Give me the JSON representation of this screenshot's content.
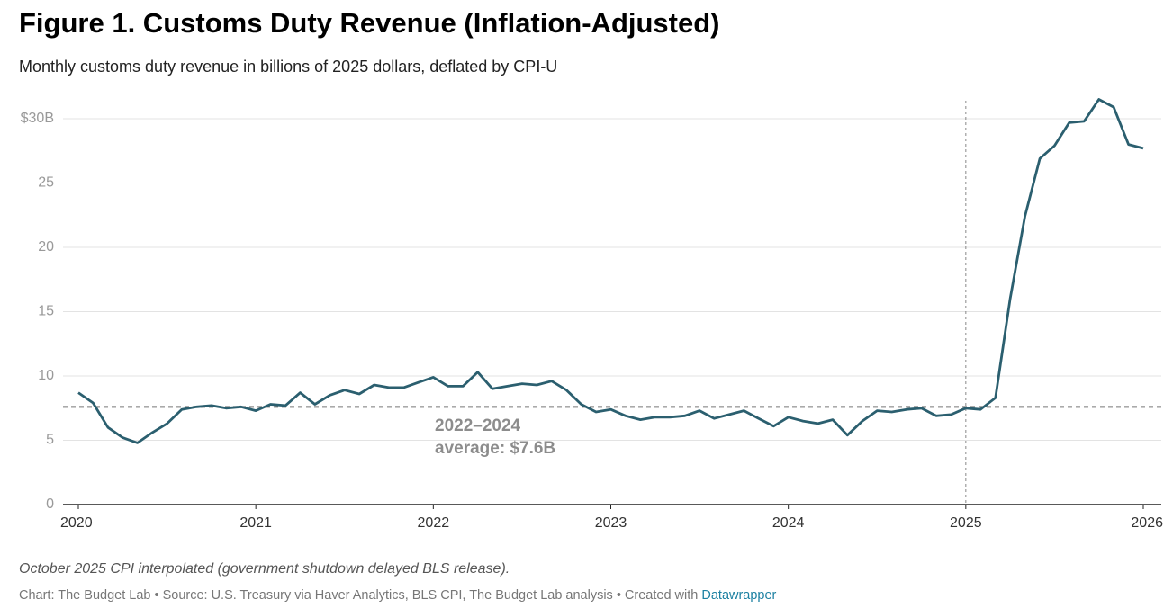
{
  "chart_data": {
    "type": "line",
    "title": "Figure 1. Customs Duty Revenue (Inflation-Adjusted)",
    "subtitle": "Monthly customs duty revenue in billions of 2025 dollars, deflated by CPI-U",
    "x": [
      2020,
      2020.083,
      2020.167,
      2020.25,
      2020.333,
      2020.417,
      2020.5,
      2020.583,
      2020.667,
      2020.75,
      2020.833,
      2020.917,
      2021,
      2021.083,
      2021.167,
      2021.25,
      2021.333,
      2021.417,
      2021.5,
      2021.583,
      2021.667,
      2021.75,
      2021.833,
      2021.917,
      2022,
      2022.083,
      2022.167,
      2022.25,
      2022.333,
      2022.417,
      2022.5,
      2022.583,
      2022.667,
      2022.75,
      2022.833,
      2022.917,
      2023,
      2023.083,
      2023.167,
      2023.25,
      2023.333,
      2023.417,
      2023.5,
      2023.583,
      2023.667,
      2023.75,
      2023.833,
      2023.917,
      2024,
      2024.083,
      2024.167,
      2024.25,
      2024.333,
      2024.417,
      2024.5,
      2024.583,
      2024.667,
      2024.75,
      2024.833,
      2024.917,
      2025,
      2025.083,
      2025.167,
      2025.25,
      2025.333,
      2025.417,
      2025.5,
      2025.583,
      2025.667,
      2025.75,
      2025.833,
      2025.917,
      2026
    ],
    "series": [
      {
        "name": "Customs duty revenue",
        "color": "#2b5f6f",
        "values": [
          8.7,
          7.9,
          6.0,
          5.2,
          4.8,
          5.6,
          6.3,
          7.4,
          7.6,
          7.7,
          7.5,
          7.6,
          7.3,
          7.8,
          7.7,
          8.7,
          7.8,
          8.5,
          8.9,
          8.6,
          9.3,
          9.1,
          9.1,
          9.5,
          9.9,
          9.2,
          9.2,
          10.3,
          9.0,
          9.2,
          9.4,
          9.3,
          9.6,
          8.9,
          7.8,
          7.2,
          7.4,
          6.9,
          6.6,
          6.8,
          6.8,
          6.9,
          7.3,
          6.7,
          7.0,
          7.3,
          6.7,
          6.1,
          6.8,
          6.5,
          6.3,
          6.6,
          5.4,
          6.5,
          7.3,
          7.2,
          7.4,
          7.5,
          6.9,
          7.0,
          7.5,
          7.4,
          8.3,
          16.0,
          22.4,
          26.9,
          27.9,
          29.7,
          29.8,
          31.5,
          30.9,
          28.0,
          27.7
        ]
      }
    ],
    "xlim": [
      2020,
      2026
    ],
    "xticks": [
      2020,
      2021,
      2022,
      2023,
      2024,
      2025,
      2026
    ],
    "ylim": [
      0,
      30
    ],
    "yticks": [
      0,
      5,
      10,
      15,
      20,
      25,
      {
        "value": 30,
        "label": "$30B"
      }
    ],
    "grid": true,
    "reference_line": {
      "value": 7.6,
      "label": [
        "2022–2024",
        "average: $7.6B"
      ]
    },
    "reference_x": 2025,
    "note": "October 2025 CPI interpolated (government shutdown delayed BLS release).",
    "credit": "Chart: The Budget Lab • Source: U.S. Treasury via Haver Analytics, BLS CPI, The Budget Lab analysis • Created with ",
    "credit_link": "Datawrapper"
  }
}
